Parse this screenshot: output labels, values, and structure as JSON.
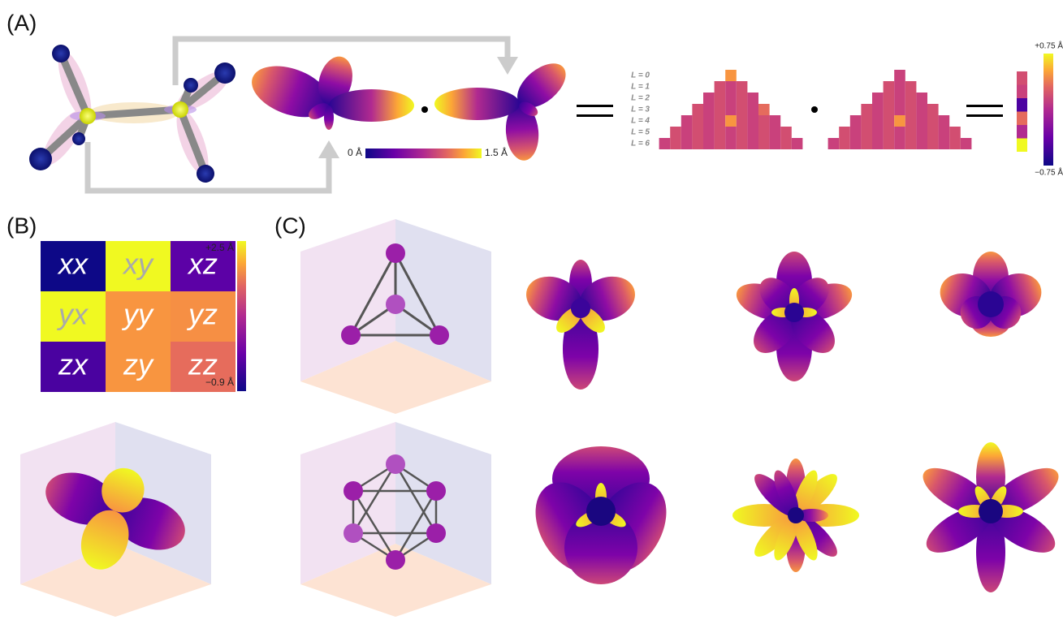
{
  "panels": {
    "a": {
      "label": "(A)",
      "distance_colorbar": {
        "min": "0 Å",
        "max": "1.5 Å"
      },
      "l_labels": [
        "L = 0",
        "L = 1",
        "L = 2",
        "L = 3",
        "L = 4",
        "L = 5",
        "L = 6"
      ],
      "coefficient_colorbar": {
        "max": "+0.75 Å",
        "min": "−0.75 Å"
      }
    },
    "b": {
      "label": "(B)",
      "matrix": [
        [
          "xx",
          "xy",
          "xz"
        ],
        [
          "yx",
          "yy",
          "yz"
        ],
        [
          "zx",
          "zy",
          "zz"
        ]
      ],
      "colorbar": {
        "max": "+2.5 Å",
        "min": "−0.9 Å"
      }
    },
    "c": {
      "label": "(C)"
    }
  }
}
